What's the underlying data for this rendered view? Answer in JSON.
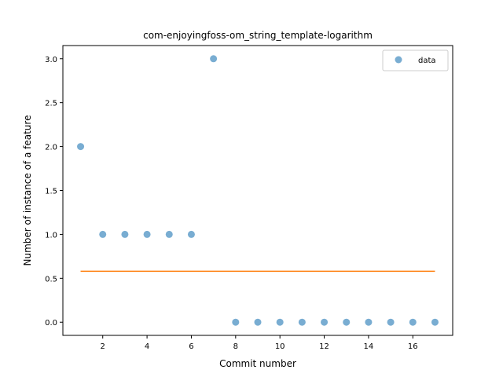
{
  "chart_data": {
    "type": "scatter",
    "title": "com-enjoyingfoss-om_string_template-logarithm",
    "xlabel": "Commit number",
    "ylabel": "Number of instance of a feature",
    "xlim": [
      0.2,
      17.8
    ],
    "ylim": [
      -0.15,
      3.15
    ],
    "xticks": [
      2,
      4,
      6,
      8,
      10,
      12,
      14,
      16
    ],
    "xtick_labels": [
      "2",
      "4",
      "6",
      "8",
      "10",
      "12",
      "14",
      "16"
    ],
    "yticks": [
      0.0,
      0.5,
      1.0,
      1.5,
      2.0,
      2.5,
      3.0
    ],
    "ytick_labels": [
      "0.0",
      "0.5",
      "1.0",
      "1.5",
      "2.0",
      "2.5",
      "3.0"
    ],
    "grid": false,
    "legend_position": "top-right",
    "series": [
      {
        "name": "data",
        "kind": "scatter",
        "color": "#1f77b4",
        "x": [
          1,
          2,
          3,
          4,
          5,
          6,
          7,
          8,
          9,
          10,
          11,
          12,
          13,
          14,
          15,
          16,
          17
        ],
        "y": [
          2,
          1,
          1,
          1,
          1,
          1,
          3,
          0,
          0,
          0,
          0,
          0,
          0,
          0,
          0,
          0,
          0
        ]
      },
      {
        "kind": "line",
        "color": "#ff7f0e",
        "x": [
          1,
          17
        ],
        "y": [
          0.58,
          0.58
        ]
      }
    ]
  }
}
